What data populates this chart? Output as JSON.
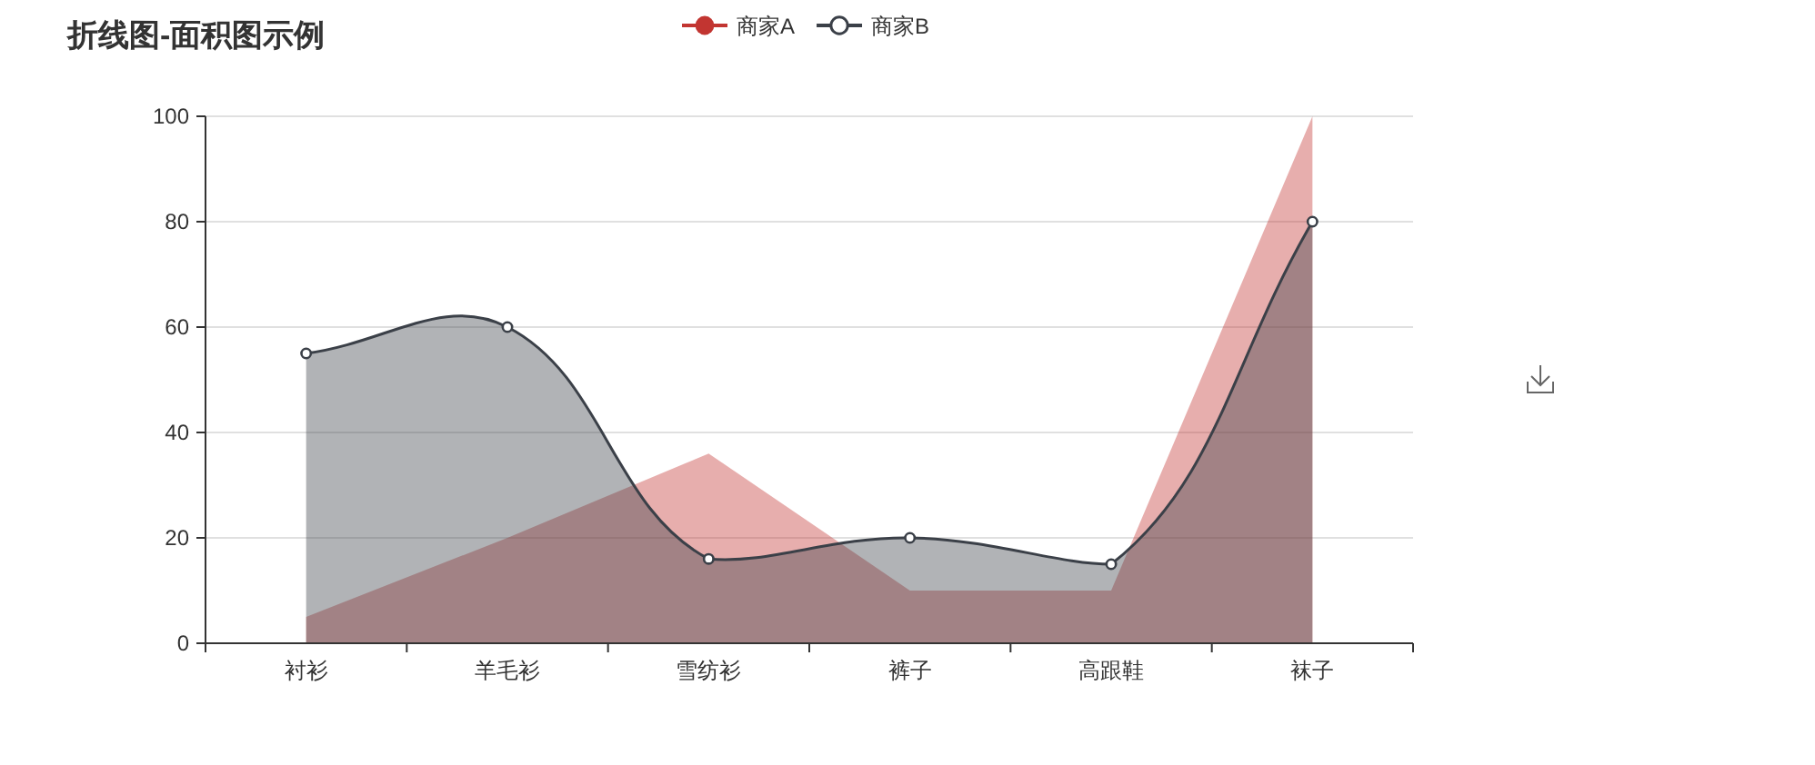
{
  "chart_data": {
    "type": "area",
    "title": "折线图-面积图示例",
    "categories": [
      "衬衫",
      "羊毛衫",
      "雪纺衫",
      "裤子",
      "高跟鞋",
      "袜子"
    ],
    "series": [
      {
        "name": "商家A",
        "color": "#c23531",
        "values": [
          5,
          20,
          36,
          10,
          10,
          100
        ]
      },
      {
        "name": "商家B",
        "color": "#3b4048",
        "marker": "circle",
        "line_style": "solid",
        "values": [
          55,
          60,
          16,
          20,
          15,
          80
        ]
      }
    ],
    "ylim": [
      0,
      100
    ],
    "yticks": [
      0,
      20,
      40,
      60,
      80,
      100
    ],
    "grid": "y",
    "legend": "top"
  }
}
